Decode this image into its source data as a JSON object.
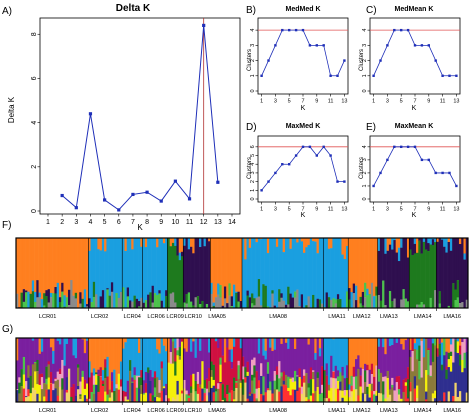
{
  "figure": {
    "panel_labels": [
      "A)",
      "B)",
      "C)",
      "D)",
      "E)",
      "F)",
      "G)"
    ],
    "colors": {
      "series": "#1f2fb8",
      "reference": "#e05555",
      "vline": "#b03030"
    },
    "structure_colors_F": [
      "#ff7f1f",
      "#1a9fe0",
      "#2f0f4f",
      "#1e7a1e",
      "#4cc24c",
      "#8b8b8b"
    ],
    "structure_colors_G": [
      "#ff7f1f",
      "#1a9fe0",
      "#7a1f9f",
      "#d01040",
      "#f0a0c0",
      "#1e7a1e",
      "#4cc24c",
      "#8b7a3a",
      "#f5f00a",
      "#2f2f8f",
      "#ff3030",
      "#f2d46a"
    ]
  },
  "chart_data": [
    {
      "id": "A",
      "type": "line",
      "title": "Delta K",
      "xlabel": "K",
      "ylabel": "Delta K",
      "x": [
        2,
        3,
        4,
        5,
        6,
        7,
        8,
        9,
        10,
        11,
        12,
        13
      ],
      "values": [
        0.7,
        0.15,
        4.4,
        0.5,
        0.05,
        0.75,
        0.85,
        0.45,
        1.35,
        0.55,
        8.4,
        1.3
      ],
      "xticks": [
        "1",
        "2",
        "3",
        "4",
        "5",
        "6",
        "7",
        "8",
        "9",
        "10",
        "11",
        "12",
        "13",
        "14"
      ],
      "yticks": [
        "0",
        "2",
        "4",
        "6",
        "8"
      ],
      "xlim": [
        1,
        14
      ],
      "ylim": [
        0,
        8.6
      ],
      "vline_x": 12,
      "grid": false
    },
    {
      "id": "B",
      "type": "line",
      "title": "MedMed K",
      "xlabel": "K",
      "ylabel": "Clusters",
      "x": [
        1,
        2,
        3,
        4,
        5,
        6,
        7,
        8,
        9,
        10,
        11,
        12,
        13
      ],
      "values": [
        1,
        2,
        3,
        4,
        4,
        4,
        4,
        3,
        3,
        3,
        1,
        1,
        2
      ],
      "xticks": [
        "1",
        "3",
        "5",
        "7",
        "9",
        "11",
        "13"
      ],
      "yticks": [
        "0",
        "1",
        "2",
        "3",
        "4"
      ],
      "ylim": [
        0,
        4.6
      ],
      "hline_y": 4,
      "grid": false
    },
    {
      "id": "C",
      "type": "line",
      "title": "MedMean K",
      "xlabel": "K",
      "ylabel": "Clusters",
      "x": [
        1,
        2,
        3,
        4,
        5,
        6,
        7,
        8,
        9,
        10,
        11,
        12,
        13
      ],
      "values": [
        1,
        2,
        3,
        4,
        4,
        4,
        3,
        3,
        3,
        2,
        1,
        1,
        1
      ],
      "xticks": [
        "1",
        "3",
        "5",
        "7",
        "9",
        "11",
        "13"
      ],
      "yticks": [
        "0",
        "1",
        "2",
        "3",
        "4"
      ],
      "ylim": [
        0,
        4.6
      ],
      "hline_y": 4,
      "grid": false
    },
    {
      "id": "D",
      "type": "line",
      "title": "MaxMed K",
      "xlabel": "K",
      "ylabel": "Clusters",
      "x": [
        1,
        2,
        3,
        4,
        5,
        6,
        7,
        8,
        9,
        10,
        11,
        12,
        13
      ],
      "values": [
        1,
        2,
        3,
        4,
        4,
        5,
        6,
        6,
        5,
        6,
        5,
        2,
        2
      ],
      "xticks": [
        "1",
        "3",
        "5",
        "7",
        "9",
        "11",
        "13"
      ],
      "yticks": [
        "0",
        "1",
        "2",
        "3",
        "4",
        "5",
        "6"
      ],
      "ylim": [
        0,
        6.9
      ],
      "hline_y": 6,
      "grid": false
    },
    {
      "id": "E",
      "type": "line",
      "title": "MaxMean K",
      "xlabel": "K",
      "ylabel": "Clusters",
      "x": [
        1,
        2,
        3,
        4,
        5,
        6,
        7,
        8,
        9,
        10,
        11,
        12,
        13
      ],
      "values": [
        1,
        2,
        3,
        4,
        4,
        4,
        4,
        3,
        3,
        2,
        2,
        2,
        1
      ],
      "xticks": [
        "1",
        "3",
        "5",
        "7",
        "9",
        "11",
        "13"
      ],
      "yticks": [
        "0",
        "1",
        "2",
        "3",
        "4"
      ],
      "ylim": [
        0,
        4.6
      ],
      "hline_y": 4,
      "grid": false
    }
  ],
  "structure": {
    "F": {
      "populations": [
        "LCR01",
        "LCR02",
        "LCR04",
        "LCR06",
        "LCR09",
        "LCR10",
        "LMA05",
        "LMA08",
        "LMA11",
        "LMA12",
        "LMA13",
        "LMA14",
        "LMA16"
      ]
    },
    "G": {
      "populations": [
        "LCR01",
        "LCR02",
        "LCR04",
        "LCR06",
        "LCR09",
        "LCR10",
        "LMA05",
        "LMA08",
        "LMA11",
        "LMA12",
        "LMA13",
        "LMA14",
        "LMA16"
      ]
    }
  }
}
